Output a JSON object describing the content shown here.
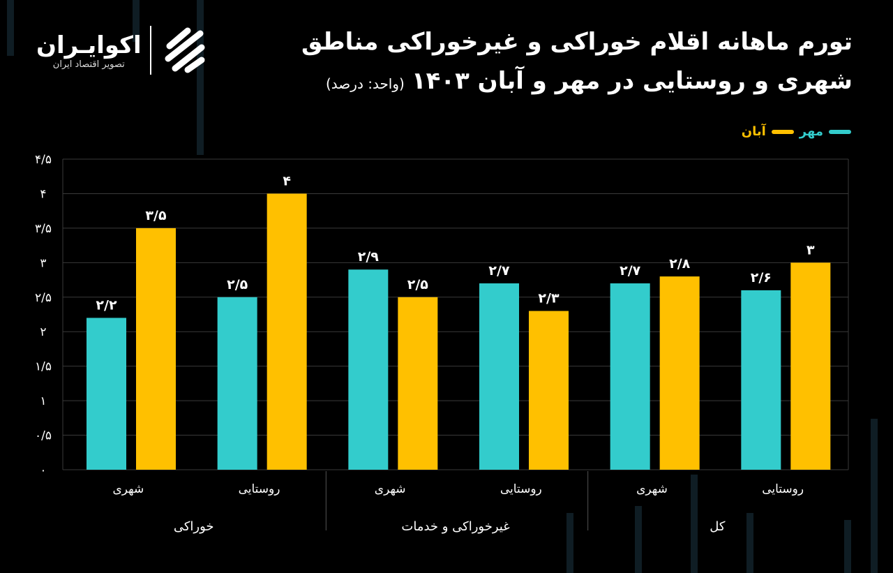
{
  "header": {
    "title_line1": "تورم ماهانه اقلام خوراکی و غیرخوراکی مناطق",
    "title_line2": "شهری و روستایی در مهر و آبان ۱۴۰۳",
    "unit": "(واحد: درصد)"
  },
  "logo": {
    "name": "اکوایـران",
    "subtitle": "تصویر اقتصاد ایران"
  },
  "colors": {
    "mehr": "#33CCCC",
    "aban": "#FFC000",
    "background": "#000000",
    "grid": "#3a3a3a"
  },
  "chart_data": {
    "type": "bar",
    "ylim": [
      0,
      4.5
    ],
    "grid": true,
    "legend_position": "top-right",
    "yticks": [
      0,
      0.5,
      1,
      1.5,
      2,
      2.5,
      3,
      3.5,
      4,
      4.5
    ],
    "ytick_labels": [
      "۰",
      "۰/۵",
      "۱",
      "۱/۵",
      "۲",
      "۲/۵",
      "۳",
      "۳/۵",
      "۴",
      "۴/۵"
    ],
    "categories": [
      "شهری",
      "روستایی",
      "شهری",
      "روستایی",
      "شهری",
      "روستایی"
    ],
    "groups": [
      {
        "label": "خوراکی",
        "span": 2
      },
      {
        "label": "غیرخوراکی و خدمات",
        "span": 2
      },
      {
        "label": "کل",
        "span": 2
      }
    ],
    "series": [
      {
        "name": "مهر",
        "values": [
          2.2,
          2.5,
          2.9,
          2.7,
          2.7,
          2.6
        ],
        "labels": [
          "۲/۲",
          "۲/۵",
          "۲/۹",
          "۲/۷",
          "۲/۷",
          "۲/۶"
        ]
      },
      {
        "name": "آبان",
        "values": [
          3.5,
          4,
          2.5,
          2.3,
          2.8,
          3
        ],
        "labels": [
          "۳/۵",
          "۴",
          "۲/۵",
          "۲/۳",
          "۲/۸",
          "۳"
        ]
      }
    ]
  }
}
